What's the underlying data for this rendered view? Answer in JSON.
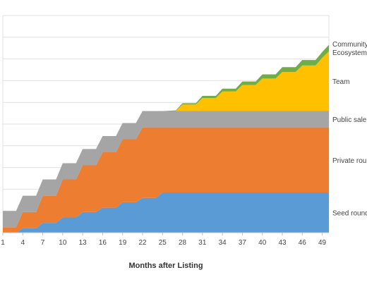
{
  "chart_data": {
    "type": "area",
    "stacked": true,
    "title": "",
    "xlabel": "Months after Listing",
    "ylabel": "",
    "xlim": [
      1,
      50
    ],
    "ylim": [
      0,
      1
    ],
    "grid": "horizontal",
    "legend": "right-side labels",
    "x_ticks": [
      1,
      4,
      7,
      10,
      13,
      16,
      19,
      22,
      25,
      28,
      31,
      34,
      37,
      40,
      43,
      46,
      49
    ],
    "series": [
      {
        "name": "Seed round",
        "color": "#5b9bd5",
        "x": [
          1,
          3,
          4,
          6,
          7,
          9,
          10,
          12,
          13,
          15,
          16,
          18,
          19,
          21,
          22,
          24,
          25,
          50
        ],
        "values": [
          0.0,
          0.0,
          0.02,
          0.02,
          0.045,
          0.045,
          0.07,
          0.07,
          0.095,
          0.095,
          0.115,
          0.115,
          0.14,
          0.14,
          0.16,
          0.16,
          0.185,
          0.185
        ]
      },
      {
        "name": "Private round",
        "color": "#ed7d31",
        "x": [
          1,
          3,
          4,
          6,
          7,
          9,
          10,
          12,
          13,
          15,
          16,
          18,
          19,
          21,
          22,
          24,
          25,
          50
        ],
        "values": [
          0.025,
          0.025,
          0.075,
          0.075,
          0.125,
          0.125,
          0.175,
          0.175,
          0.215,
          0.215,
          0.255,
          0.255,
          0.29,
          0.29,
          0.325,
          0.325,
          0.3,
          0.3
        ]
      },
      {
        "name": "Public sale",
        "color": "#a5a5a5",
        "x": [
          1,
          50
        ],
        "values": [
          0.075,
          0.075
        ]
      },
      {
        "name": "Team",
        "color": "#ffc000",
        "x": [
          25,
          27,
          28,
          30,
          31,
          33,
          34,
          36,
          37,
          39,
          40,
          42,
          43,
          45,
          46,
          48,
          49,
          50
        ],
        "values": [
          0.0,
          0.0,
          0.03,
          0.03,
          0.06,
          0.06,
          0.09,
          0.09,
          0.12,
          0.12,
          0.15,
          0.15,
          0.18,
          0.18,
          0.21,
          0.21,
          0.245,
          0.275
        ]
      },
      {
        "name": "Community & Ecosystem",
        "lines": [
          "Community &",
          "Ecosystem"
        ],
        "color": "#70ad47",
        "x": [
          25,
          27,
          28,
          30,
          31,
          33,
          34,
          36,
          37,
          39,
          40,
          42,
          43,
          45,
          46,
          48,
          49,
          50
        ],
        "values": [
          0.0,
          0.003,
          0.006,
          0.006,
          0.01,
          0.01,
          0.013,
          0.013,
          0.016,
          0.016,
          0.019,
          0.019,
          0.022,
          0.022,
          0.025,
          0.025,
          0.027,
          0.03
        ]
      }
    ]
  }
}
